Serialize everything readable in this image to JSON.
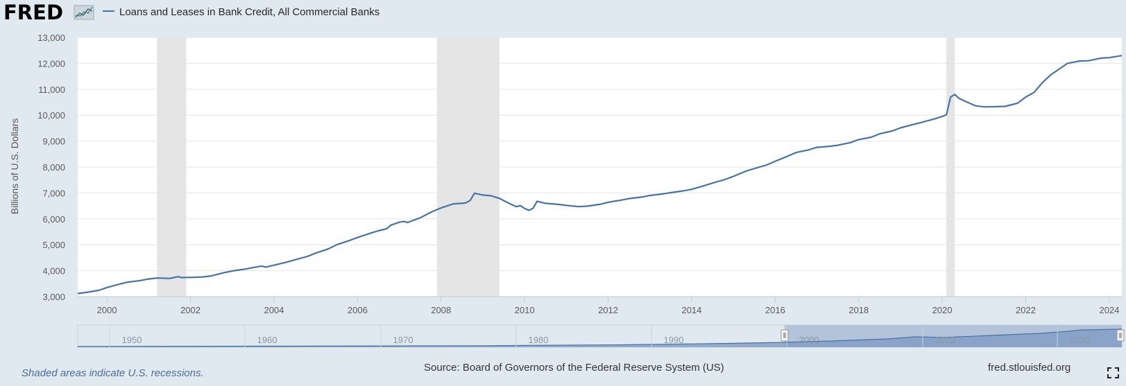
{
  "header": {
    "logo_text": "FRED",
    "logo_icon": "chart-line-icon",
    "series_title": "Loans and Leases in Bank Credit, All Commercial Banks"
  },
  "footer": {
    "recession_note": "Shaded areas indicate U.S. recessions.",
    "source": "Source: Board of Governors of the Federal Reserve System (US)",
    "site": "fred.stlouisfed.org",
    "fullscreen_icon": "fullscreen-icon"
  },
  "navigator": {
    "ticks": [
      "1950",
      "1960",
      "1970",
      "1980",
      "1990",
      "2000",
      "2010",
      "2020"
    ]
  },
  "colors": {
    "line": "#4572a7",
    "recession": "#e5e5e5",
    "background": "#e1e9f0",
    "plot": "#ffffff",
    "grid": "#e6e6e6"
  },
  "chart_data": {
    "type": "line",
    "title": "Loans and Leases in Bank Credit, All Commercial Banks",
    "ylabel": "Billions of U.S. Dollars",
    "xlabel": "",
    "xlim": [
      1999.3,
      2024.3
    ],
    "ylim": [
      3000,
      13000
    ],
    "yticks": [
      3000,
      4000,
      5000,
      6000,
      7000,
      8000,
      9000,
      10000,
      11000,
      12000,
      13000
    ],
    "ytick_labels": [
      "3,000",
      "4,000",
      "5,000",
      "6,000",
      "7,000",
      "8,000",
      "9,000",
      "10,000",
      "11,000",
      "12,000",
      "13,000"
    ],
    "xticks": [
      2000,
      2002,
      2004,
      2006,
      2008,
      2010,
      2012,
      2014,
      2016,
      2018,
      2020,
      2022,
      2024
    ],
    "xtick_labels": [
      "2000",
      "2002",
      "2004",
      "2006",
      "2008",
      "2010",
      "2012",
      "2014",
      "2016",
      "2018",
      "2020",
      "2022",
      "2024"
    ],
    "grid": true,
    "recessions": [
      [
        2001.2,
        2001.9
      ],
      [
        2007.9,
        2009.4
      ],
      [
        2020.1,
        2020.3
      ]
    ],
    "series": [
      {
        "x": [
          1999.3,
          1999.5,
          1999.8,
          2000.0,
          2000.3,
          2000.5,
          2000.8,
          2001.0,
          2001.2,
          2001.5,
          2001.7,
          2001.8,
          2001.9,
          2002.0,
          2002.3,
          2002.5,
          2002.8,
          2003.0,
          2003.3,
          2003.5,
          2003.7,
          2003.8,
          2004.0,
          2004.3,
          2004.5,
          2004.8,
          2005.0,
          2005.3,
          2005.5,
          2005.8,
          2006.0,
          2006.3,
          2006.5,
          2006.7,
          2006.8,
          2007.0,
          2007.1,
          2007.2,
          2007.5,
          2007.8,
          2008.0,
          2008.3,
          2008.5,
          2008.6,
          2008.7,
          2008.8,
          2009.0,
          2009.2,
          2009.4,
          2009.6,
          2009.8,
          2009.9,
          2010.0,
          2010.1,
          2010.2,
          2010.3,
          2010.5,
          2010.8,
          2011.0,
          2011.3,
          2011.5,
          2011.8,
          2012.0,
          2012.3,
          2012.5,
          2012.8,
          2013.0,
          2013.3,
          2013.5,
          2013.8,
          2014.0,
          2014.3,
          2014.5,
          2014.8,
          2015.0,
          2015.3,
          2015.5,
          2015.8,
          2016.0,
          2016.3,
          2016.5,
          2016.8,
          2017.0,
          2017.3,
          2017.5,
          2017.8,
          2018.0,
          2018.3,
          2018.5,
          2018.8,
          2019.0,
          2019.3,
          2019.5,
          2019.8,
          2020.0,
          2020.1,
          2020.2,
          2020.3,
          2020.4,
          2020.6,
          2020.8,
          2021.0,
          2021.3,
          2021.5,
          2021.8,
          2022.0,
          2022.2,
          2022.4,
          2022.6,
          2022.8,
          2023.0,
          2023.3,
          2023.5,
          2023.8,
          2024.0,
          2024.3
        ],
        "values": [
          3120,
          3160,
          3240,
          3350,
          3480,
          3560,
          3620,
          3680,
          3720,
          3700,
          3770,
          3730,
          3740,
          3740,
          3760,
          3800,
          3920,
          3990,
          4060,
          4120,
          4180,
          4140,
          4210,
          4330,
          4420,
          4550,
          4680,
          4840,
          5000,
          5160,
          5280,
          5440,
          5540,
          5620,
          5760,
          5870,
          5900,
          5860,
          6040,
          6290,
          6420,
          6580,
          6600,
          6620,
          6720,
          6990,
          6920,
          6890,
          6790,
          6620,
          6470,
          6510,
          6400,
          6330,
          6400,
          6680,
          6600,
          6560,
          6520,
          6470,
          6490,
          6560,
          6640,
          6720,
          6780,
          6840,
          6900,
          6960,
          7010,
          7080,
          7140,
          7280,
          7380,
          7520,
          7640,
          7840,
          7940,
          8080,
          8220,
          8420,
          8560,
          8660,
          8760,
          8800,
          8840,
          8940,
          9060,
          9150,
          9280,
          9390,
          9510,
          9640,
          9720,
          9850,
          9950,
          10020,
          10700,
          10800,
          10650,
          10500,
          10360,
          10320,
          10330,
          10340,
          10460,
          10700,
          10880,
          11260,
          11560,
          11780,
          12000,
          12090,
          12100,
          12200,
          12220,
          12300
        ]
      }
    ]
  }
}
